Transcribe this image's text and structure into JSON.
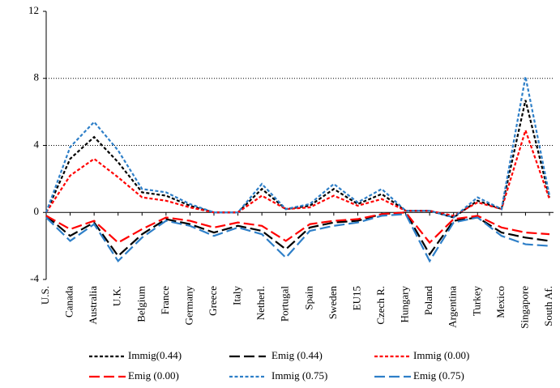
{
  "chart_data": {
    "type": "line",
    "categories": [
      "U.S.",
      "Canada",
      "Australia",
      "U.K.",
      "Belgium",
      "France",
      "Germany",
      "Greece",
      "Italy",
      "Netherl.",
      "Portugal",
      "Spain",
      "Sweden",
      "EU15",
      "Czech R.",
      "Hungary",
      "Poland",
      "Argentina",
      "Turkey",
      "Mexico",
      "Singapore",
      "South Af."
    ],
    "series": [
      {
        "name": "Immig(0.44)",
        "color": "#000000",
        "style": "dotted",
        "values": [
          0,
          3.2,
          4.5,
          3.0,
          1.2,
          1.0,
          0.4,
          0,
          0,
          1.4,
          0.2,
          0.4,
          1.4,
          0.5,
          1.1,
          0.1,
          0.1,
          -0.3,
          0.7,
          0.2,
          6.7,
          0.9
        ]
      },
      {
        "name": "Emig (0.44)",
        "color": "#000000",
        "style": "dashed",
        "values": [
          -0.2,
          -1.4,
          -0.6,
          -2.6,
          -1.3,
          -0.4,
          -0.7,
          -1.2,
          -0.8,
          -1.1,
          -2.2,
          -0.9,
          -0.6,
          -0.5,
          -0.1,
          0,
          -2.5,
          -0.5,
          -0.3,
          -1.2,
          -1.5,
          -1.7
        ]
      },
      {
        "name": "Immig (0.00)",
        "color": "#ff0000",
        "style": "dotted",
        "values": [
          0,
          2.2,
          3.2,
          2.1,
          0.9,
          0.7,
          0.3,
          0,
          0,
          1.0,
          0.2,
          0.3,
          1.0,
          0.4,
          0.8,
          0.1,
          0.1,
          -0.2,
          0.6,
          0.2,
          4.9,
          0.8
        ]
      },
      {
        "name": "Emig (0.00)",
        "color": "#ff0000",
        "style": "dashed",
        "values": [
          -0.2,
          -1.0,
          -0.5,
          -1.8,
          -1.0,
          -0.3,
          -0.5,
          -0.9,
          -0.6,
          -0.8,
          -1.7,
          -0.7,
          -0.5,
          -0.4,
          -0.1,
          0,
          -1.8,
          -0.4,
          -0.2,
          -0.9,
          -1.2,
          -1.3
        ]
      },
      {
        "name": "Immig (0.75)",
        "color": "#2e7fc8",
        "style": "dotted",
        "values": [
          0,
          3.9,
          5.4,
          3.7,
          1.4,
          1.2,
          0.5,
          0,
          0,
          1.7,
          0.2,
          0.5,
          1.7,
          0.6,
          1.4,
          0.1,
          0.1,
          -0.3,
          0.9,
          0.2,
          8.1,
          1.0
        ]
      },
      {
        "name": "Emig (0.75)",
        "color": "#2e7fc8",
        "style": "dashed",
        "values": [
          -0.3,
          -1.7,
          -0.7,
          -2.9,
          -1.5,
          -0.5,
          -0.8,
          -1.4,
          -0.9,
          -1.3,
          -2.7,
          -1.1,
          -0.8,
          -0.6,
          -0.2,
          -0.1,
          -2.9,
          -0.6,
          -0.3,
          -1.4,
          -1.9,
          -2.0
        ]
      }
    ],
    "ylim": [
      -4,
      12
    ],
    "yticks": [
      -4,
      0,
      4,
      8,
      12
    ],
    "grid": true,
    "legend": "bottom"
  }
}
